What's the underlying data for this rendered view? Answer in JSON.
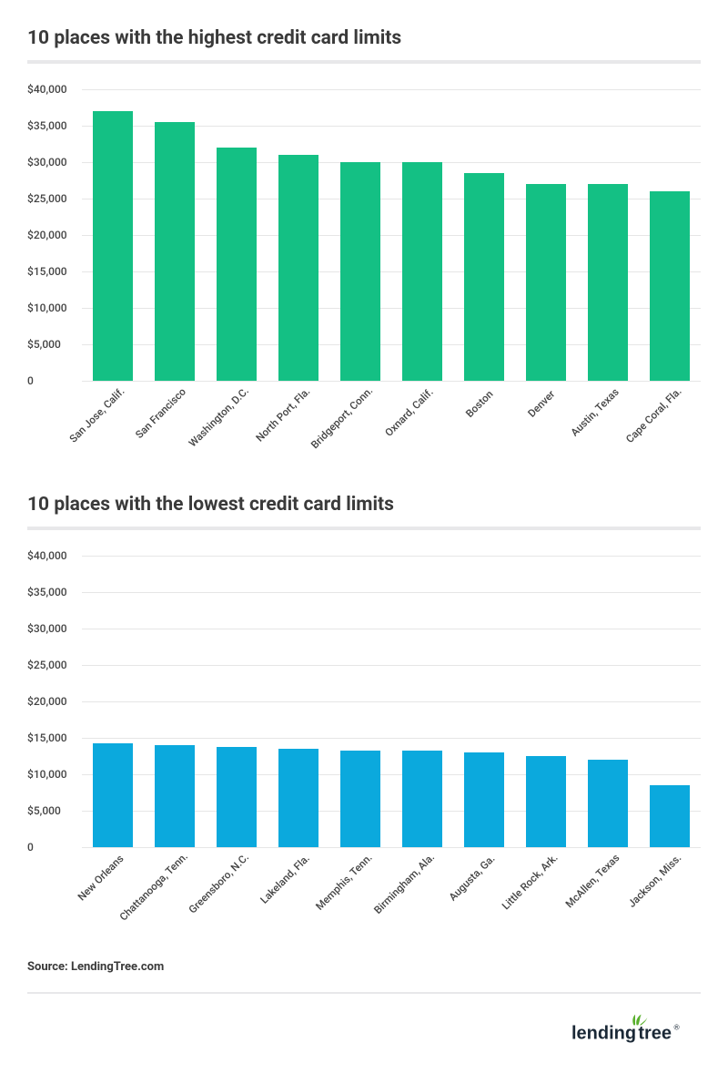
{
  "charts": [
    {
      "title": "10 places with the highest credit card limits",
      "type": "bar",
      "bar_color": "#14c084",
      "background_color": "#ffffff",
      "grid_color": "#e6e6e6",
      "ymin": 0,
      "ymax": 40000,
      "ytick_step": 5000,
      "yticks": [
        {
          "v": 0,
          "label": "0"
        },
        {
          "v": 5000,
          "label": "$5,000"
        },
        {
          "v": 10000,
          "label": "$10,000"
        },
        {
          "v": 15000,
          "label": "$15,000"
        },
        {
          "v": 20000,
          "label": "$20,000"
        },
        {
          "v": 25000,
          "label": "$25,000"
        },
        {
          "v": 30000,
          "label": "$30,000"
        },
        {
          "v": 35000,
          "label": "$35,000"
        },
        {
          "v": 40000,
          "label": "$40,000"
        }
      ],
      "categories": [
        "San Jose, Calif.",
        "San Francisco",
        "Washington, D.C.",
        "North Port, Fla.",
        "Bridgeport, Conn.",
        "Oxnard, Calif.",
        "Boston",
        "Denver",
        "Austin, Texas",
        "Cape Coral, Fla."
      ],
      "values": [
        37000,
        35500,
        32000,
        31000,
        30000,
        30000,
        28500,
        27000,
        27000,
        26000
      ],
      "title_fontsize": 21,
      "label_fontsize": 12,
      "bar_width": 0.64
    },
    {
      "title": "10 places with the lowest credit card limits",
      "type": "bar",
      "bar_color": "#0ba9dd",
      "background_color": "#ffffff",
      "grid_color": "#e6e6e6",
      "ymin": 0,
      "ymax": 40000,
      "ytick_step": 5000,
      "yticks": [
        {
          "v": 0,
          "label": "0"
        },
        {
          "v": 5000,
          "label": "$5,000"
        },
        {
          "v": 10000,
          "label": "$10,000"
        },
        {
          "v": 15000,
          "label": "$15,000"
        },
        {
          "v": 20000,
          "label": "$20,000"
        },
        {
          "v": 25000,
          "label": "$25,000"
        },
        {
          "v": 30000,
          "label": "$30,000"
        },
        {
          "v": 35000,
          "label": "$35,000"
        },
        {
          "v": 40000,
          "label": "$40,000"
        }
      ],
      "categories": [
        "New Orleans",
        "Chattanooga, Tenn.",
        "Greensboro, N.C.",
        "Lakeland, Fla.",
        "Memphis, Tenn.",
        "Birmingham, Ala.",
        "Augusta, Ga.",
        "Little Rock, Ark.",
        "McAllen, Texas",
        "Jackson, Miss."
      ],
      "values": [
        14300,
        14000,
        13700,
        13500,
        13300,
        13300,
        13000,
        12500,
        12000,
        8500
      ],
      "title_fontsize": 21,
      "label_fontsize": 12,
      "bar_width": 0.64
    }
  ],
  "source": "Source: LendingTree.com",
  "logo": {
    "text": "lendingtree",
    "text_color": "#1a2836",
    "accent_color": "#5ab02e"
  }
}
